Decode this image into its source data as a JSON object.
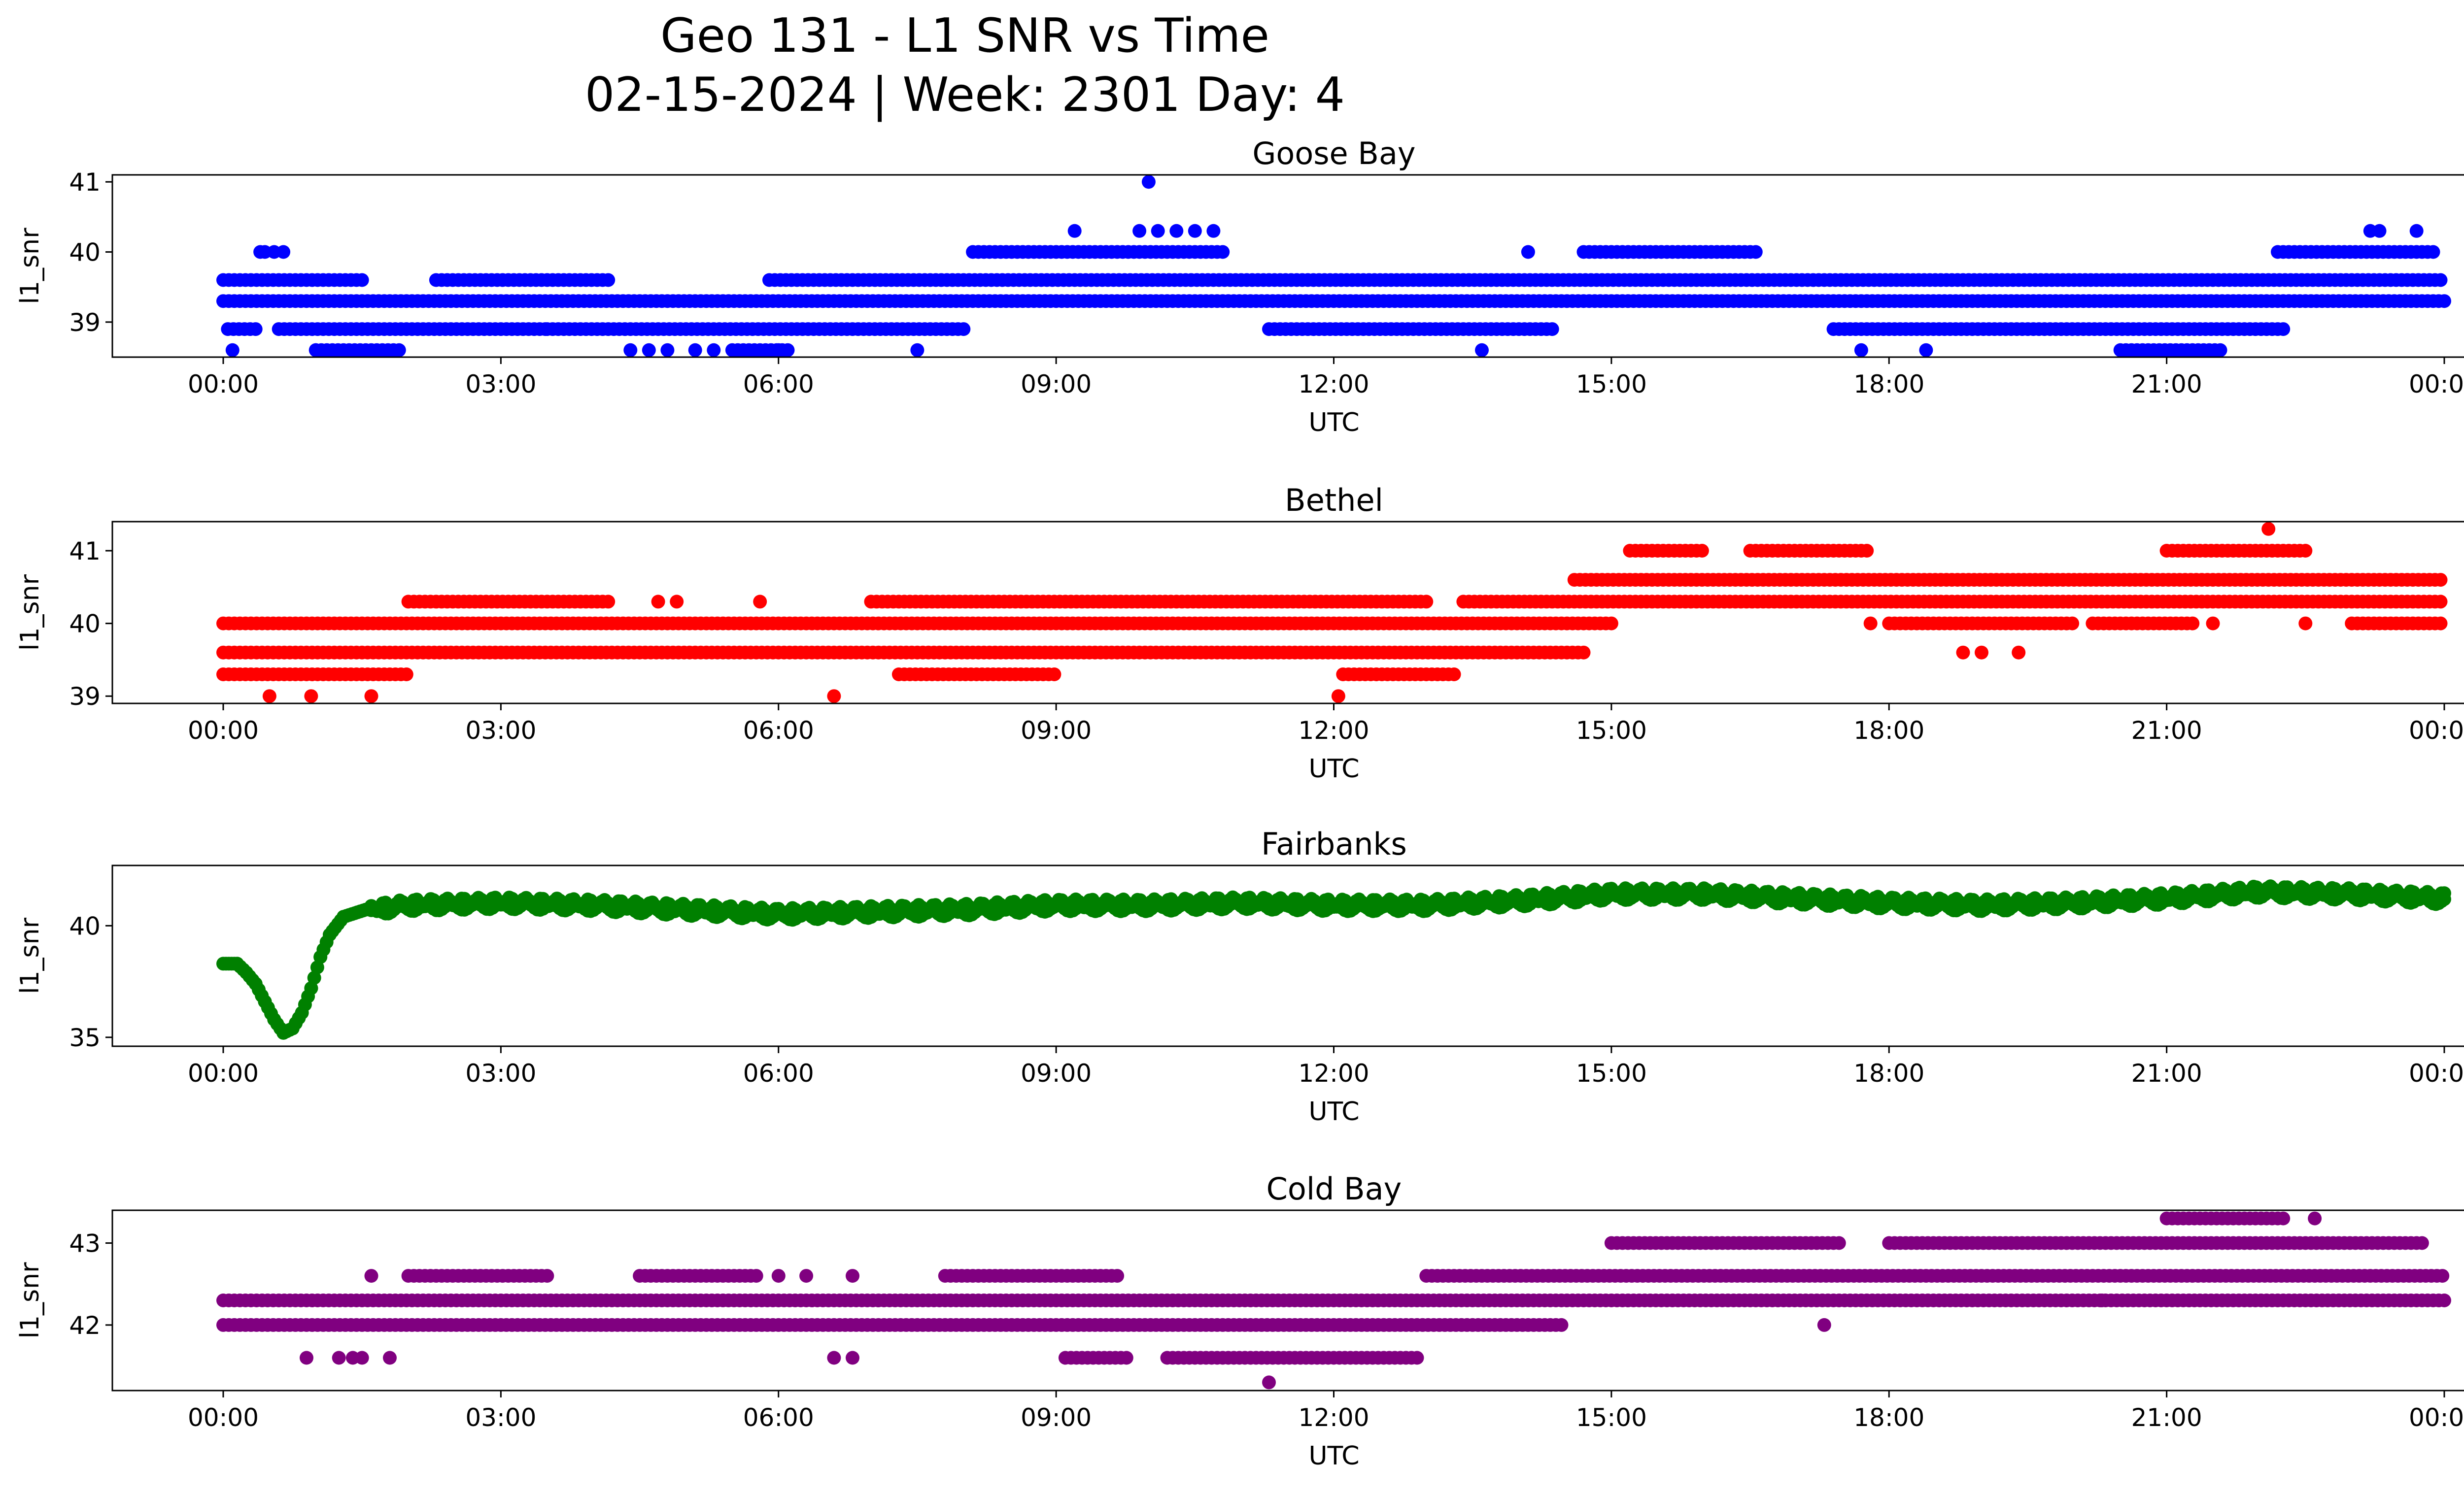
{
  "title_line1": "Geo 131 - L1 SNR vs Time",
  "title_line2": "02-15-2024 | Week: 2301 Day: 4",
  "chart_data": [
    {
      "type": "scatter",
      "title": "Goose Bay",
      "xlabel": "UTC",
      "ylabel": "l1_snr",
      "color": "#0000ff",
      "x_ticks": [
        "00:00",
        "03:00",
        "06:00",
        "09:00",
        "12:00",
        "15:00",
        "18:00",
        "21:00",
        "00:00"
      ],
      "y_ticks": [
        39,
        40,
        41
      ],
      "ylim": [
        38.5,
        41.1
      ],
      "levels": [
        38.6,
        38.9,
        39.3,
        39.6,
        40.0,
        40.3,
        41.0
      ],
      "segments": [
        {
          "level": 39.3,
          "from": 0.0,
          "to": 24.0
        },
        {
          "level": 39.6,
          "from": 0.0,
          "to": 1.5
        },
        {
          "level": 39.6,
          "from": 2.3,
          "to": 4.2
        },
        {
          "level": 39.6,
          "from": 5.9,
          "to": 24.0
        },
        {
          "level": 38.9,
          "from": 0.05,
          "to": 0.35
        },
        {
          "level": 38.9,
          "from": 0.6,
          "to": 3.5
        },
        {
          "level": 38.9,
          "from": 3.5,
          "to": 8.0
        },
        {
          "level": 38.9,
          "from": 11.3,
          "to": 14.4
        },
        {
          "level": 38.9,
          "from": 17.4,
          "to": 22.3
        },
        {
          "level": 40.0,
          "from": 8.1,
          "to": 10.8
        },
        {
          "level": 40.0,
          "from": 14.7,
          "to": 16.6
        },
        {
          "level": 40.0,
          "from": 22.2,
          "to": 23.9
        },
        {
          "level": 38.6,
          "from": 1.0,
          "to": 1.9
        },
        {
          "level": 38.6,
          "from": 5.5,
          "to": 6.1
        },
        {
          "level": 38.6,
          "from": 20.5,
          "to": 21.6
        }
      ],
      "points": [
        [
          0.1,
          38.6
        ],
        [
          0.4,
          40.0
        ],
        [
          0.55,
          40.0
        ],
        [
          0.45,
          40.0
        ],
        [
          0.65,
          40.0
        ],
        [
          1.0,
          38.6
        ],
        [
          4.4,
          38.6
        ],
        [
          4.6,
          38.6
        ],
        [
          4.8,
          38.6
        ],
        [
          5.1,
          38.6
        ],
        [
          5.3,
          38.6
        ],
        [
          6.0,
          38.6
        ],
        [
          7.5,
          38.6
        ],
        [
          9.2,
          40.3
        ],
        [
          10.0,
          41.0
        ],
        [
          9.9,
          40.3
        ],
        [
          10.1,
          40.3
        ],
        [
          10.3,
          40.3
        ],
        [
          10.5,
          40.3
        ],
        [
          10.7,
          40.3
        ],
        [
          13.6,
          38.6
        ],
        [
          14.1,
          40.0
        ],
        [
          17.7,
          38.6
        ],
        [
          18.4,
          38.6
        ],
        [
          23.2,
          40.3
        ],
        [
          23.3,
          40.3
        ],
        [
          23.7,
          40.3
        ]
      ]
    },
    {
      "type": "scatter",
      "title": "Bethel",
      "xlabel": "UTC",
      "ylabel": "l1_snr",
      "color": "#ff0000",
      "x_ticks": [
        "00:00",
        "03:00",
        "06:00",
        "09:00",
        "12:00",
        "15:00",
        "18:00",
        "21:00",
        "00:00"
      ],
      "y_ticks": [
        39,
        40,
        41
      ],
      "ylim": [
        38.9,
        41.4
      ],
      "levels": [
        39.0,
        39.3,
        39.6,
        40.0,
        40.3,
        40.6,
        41.0,
        41.3
      ],
      "segments": [
        {
          "level": 39.6,
          "from": 0.0,
          "to": 14.7
        },
        {
          "level": 40.0,
          "from": 0.0,
          "to": 15.0
        },
        {
          "level": 39.3,
          "from": 0.0,
          "to": 2.0
        },
        {
          "level": 39.3,
          "from": 7.3,
          "to": 9.0
        },
        {
          "level": 39.3,
          "from": 12.1,
          "to": 13.3
        },
        {
          "level": 40.3,
          "from": 2.0,
          "to": 4.2
        },
        {
          "level": 40.3,
          "from": 7.0,
          "to": 13.0
        },
        {
          "level": 40.3,
          "from": 13.4,
          "to": 24.0
        },
        {
          "level": 40.6,
          "from": 14.6,
          "to": 24.0
        },
        {
          "level": 40.0,
          "from": 18.0,
          "to": 20.0
        },
        {
          "level": 40.0,
          "from": 20.2,
          "to": 21.3
        },
        {
          "level": 40.0,
          "from": 23.0,
          "to": 24.0
        },
        {
          "level": 41.0,
          "from": 15.2,
          "to": 16.0
        },
        {
          "level": 41.0,
          "from": 16.5,
          "to": 17.8
        },
        {
          "level": 41.0,
          "from": 21.0,
          "to": 22.5
        }
      ],
      "points": [
        [
          0.5,
          39.0
        ],
        [
          0.95,
          39.0
        ],
        [
          1.6,
          39.0
        ],
        [
          6.6,
          39.0
        ],
        [
          12.05,
          39.0
        ],
        [
          4.7,
          40.3
        ],
        [
          4.9,
          40.3
        ],
        [
          5.8,
          40.3
        ],
        [
          18.8,
          39.6
        ],
        [
          19.0,
          39.6
        ],
        [
          19.4,
          39.6
        ],
        [
          17.8,
          40.0
        ],
        [
          21.5,
          40.0
        ],
        [
          22.5,
          40.0
        ],
        [
          22.1,
          41.3
        ]
      ]
    },
    {
      "type": "scatter",
      "title": "Fairbanks",
      "xlabel": "UTC",
      "ylabel": "l1_snr",
      "color": "#008000",
      "x_ticks": [
        "00:00",
        "03:00",
        "06:00",
        "09:00",
        "12:00",
        "15:00",
        "18:00",
        "21:00",
        "00:00"
      ],
      "y_ticks": [
        35,
        40
      ],
      "ylim": [
        34.6,
        42.7
      ],
      "curve": [
        [
          0.0,
          38.3
        ],
        [
          0.15,
          38.3
        ],
        [
          0.25,
          37.9
        ],
        [
          0.35,
          37.4
        ],
        [
          0.45,
          36.6
        ],
        [
          0.55,
          35.8
        ],
        [
          0.65,
          35.2
        ],
        [
          0.75,
          35.4
        ],
        [
          0.85,
          36.1
        ],
        [
          0.95,
          37.2
        ],
        [
          1.05,
          38.6
        ],
        [
          1.15,
          39.6
        ],
        [
          1.3,
          40.4
        ],
        [
          1.6,
          40.8
        ],
        [
          2.0,
          41.0
        ],
        [
          3.0,
          41.1
        ],
        [
          4.0,
          41.0
        ],
        [
          5.0,
          40.8
        ],
        [
          6.0,
          40.6
        ],
        [
          7.0,
          40.7
        ],
        [
          8.0,
          40.8
        ],
        [
          9.0,
          41.0
        ],
        [
          10.0,
          41.0
        ],
        [
          11.0,
          41.1
        ],
        [
          12.0,
          41.0
        ],
        [
          13.0,
          41.0
        ],
        [
          14.0,
          41.2
        ],
        [
          15.0,
          41.5
        ],
        [
          16.0,
          41.5
        ],
        [
          17.0,
          41.3
        ],
        [
          18.0,
          41.1
        ],
        [
          19.0,
          41.0
        ],
        [
          20.0,
          41.1
        ],
        [
          21.0,
          41.3
        ],
        [
          22.0,
          41.6
        ],
        [
          23.0,
          41.5
        ],
        [
          24.0,
          41.3
        ]
      ]
    },
    {
      "type": "scatter",
      "title": "Cold Bay",
      "xlabel": "UTC",
      "ylabel": "l1_snr",
      "color": "#800080",
      "x_ticks": [
        "00:00",
        "03:00",
        "06:00",
        "09:00",
        "12:00",
        "15:00",
        "18:00",
        "21:00",
        "00:00"
      ],
      "y_ticks": [
        42,
        43
      ],
      "ylim": [
        41.2,
        43.4
      ],
      "levels": [
        41.3,
        41.6,
        42.0,
        42.3,
        42.6,
        43.0,
        43.3
      ],
      "segments": [
        {
          "level": 42.3,
          "from": 0.0,
          "to": 24.0
        },
        {
          "level": 42.0,
          "from": 0.0,
          "to": 14.5
        },
        {
          "level": 42.6,
          "from": 2.0,
          "to": 3.5
        },
        {
          "level": 42.6,
          "from": 4.5,
          "to": 5.8
        },
        {
          "level": 42.6,
          "from": 7.8,
          "to": 9.7
        },
        {
          "level": 42.6,
          "from": 13.0,
          "to": 24.0
        },
        {
          "level": 43.0,
          "from": 15.0,
          "to": 17.5
        },
        {
          "level": 43.0,
          "from": 18.0,
          "to": 23.8
        },
        {
          "level": 41.6,
          "from": 10.2,
          "to": 12.9
        },
        {
          "level": 41.6,
          "from": 9.1,
          "to": 9.8
        },
        {
          "level": 43.3,
          "from": 21.0,
          "to": 22.3
        }
      ],
      "points": [
        [
          0.9,
          41.6
        ],
        [
          1.25,
          41.6
        ],
        [
          1.4,
          41.6
        ],
        [
          1.5,
          41.6
        ],
        [
          1.8,
          41.6
        ],
        [
          6.6,
          41.6
        ],
        [
          6.8,
          41.6
        ],
        [
          1.6,
          42.6
        ],
        [
          6.0,
          42.6
        ],
        [
          6.3,
          42.6
        ],
        [
          6.8,
          42.6
        ],
        [
          11.3,
          41.3
        ],
        [
          17.3,
          42.0
        ],
        [
          20.3,
          42.3
        ],
        [
          22.6,
          43.3
        ]
      ]
    }
  ]
}
